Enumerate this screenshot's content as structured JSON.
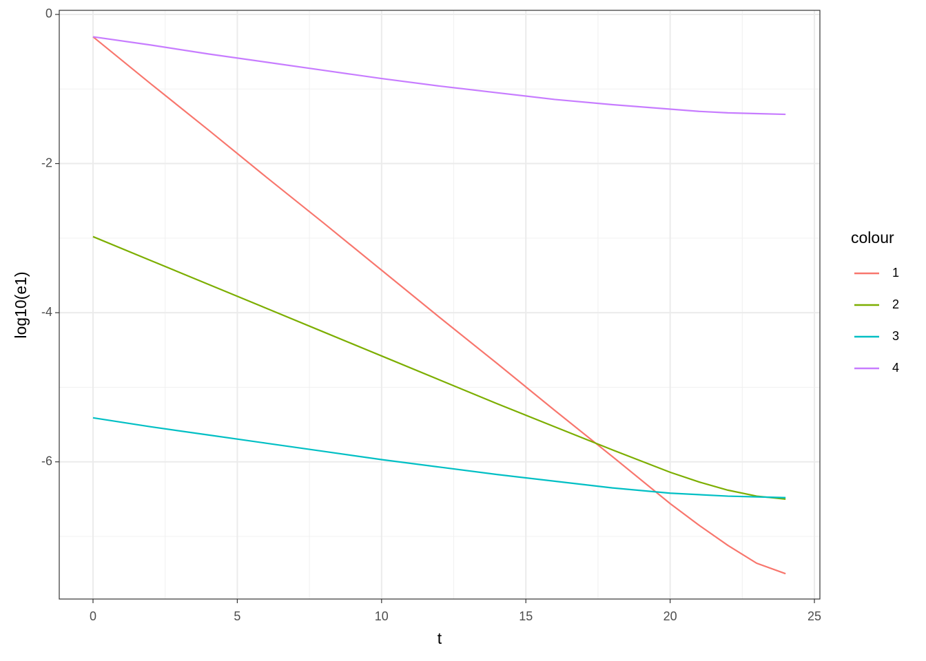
{
  "chart_data": {
    "type": "line",
    "x_label": "t",
    "y_label": "log10(e1)",
    "x": [
      0,
      2,
      4,
      6,
      8,
      10,
      12,
      14,
      16,
      18,
      20,
      21,
      22,
      23,
      24
    ],
    "series": [
      {
        "name": "1",
        "color": "#F8766D",
        "values": [
          -0.3,
          -0.93,
          -1.55,
          -2.18,
          -2.8,
          -3.43,
          -4.06,
          -4.68,
          -5.31,
          -5.93,
          -6.56,
          -6.85,
          -7.12,
          -7.36,
          -7.5
        ]
      },
      {
        "name": "2",
        "color": "#7CAE00",
        "values": [
          -2.98,
          -3.3,
          -3.62,
          -3.94,
          -4.26,
          -4.58,
          -4.9,
          -5.22,
          -5.53,
          -5.84,
          -6.14,
          -6.27,
          -6.38,
          -6.46,
          -6.5
        ]
      },
      {
        "name": "3",
        "color": "#00BFC4",
        "values": [
          -5.41,
          -5.53,
          -5.64,
          -5.75,
          -5.86,
          -5.97,
          -6.07,
          -6.17,
          -6.26,
          -6.35,
          -6.42,
          -6.44,
          -6.46,
          -6.47,
          -6.48
        ]
      },
      {
        "name": "4",
        "color": "#C77CFF",
        "values": [
          -0.3,
          -0.41,
          -0.53,
          -0.64,
          -0.75,
          -0.86,
          -0.96,
          -1.05,
          -1.14,
          -1.21,
          -1.27,
          -1.3,
          -1.32,
          -1.33,
          -1.34
        ]
      }
    ],
    "xlim": [
      -1.17,
      25.19
    ],
    "ylim": [
      -7.84,
      0.055
    ],
    "xticks": [
      0,
      5,
      10,
      15,
      20,
      25
    ],
    "yticks": [
      0,
      -2,
      -4,
      -6
    ],
    "x_minor_ticks": [
      2.5,
      7.5,
      12.5,
      17.5,
      22.5
    ],
    "y_minor_ticks": [
      -1,
      -3,
      -5,
      -7
    ],
    "grid": true,
    "legend_title": "colour",
    "legend_position": "right"
  }
}
